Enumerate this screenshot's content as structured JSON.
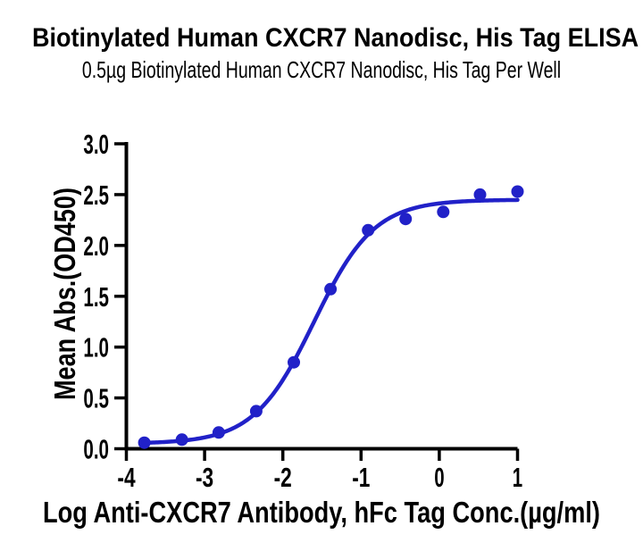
{
  "chart_data": {
    "type": "scatter",
    "title": "Biotinylated Human CXCR7 Nanodisc, His Tag ELISA",
    "subtitle": "0.5µg Biotinylated Human CXCR7 Nanodisc, His Tag Per Well",
    "xlabel": "Log Anti-CXCR7 Antibody, hFc Tag Conc.(µg/ml)",
    "ylabel": "Mean Abs.(OD450)",
    "xlim": [
      -4,
      1
    ],
    "ylim": [
      0,
      3
    ],
    "x_ticks": [
      -4,
      -3,
      -2,
      -1,
      0,
      1
    ],
    "x_tick_labels": [
      "-4",
      "-3",
      "-2",
      "-1",
      "0",
      "1"
    ],
    "y_ticks": [
      0.0,
      0.5,
      1.0,
      1.5,
      2.0,
      2.5,
      3.0
    ],
    "y_tick_labels": [
      "0.0",
      "0.5",
      "1.0",
      "1.5",
      "2.0",
      "2.5",
      "3.0"
    ],
    "grid": false,
    "legend": "none",
    "series": [
      {
        "name": "Anti-CXCR7 Antibody, hFc Tag",
        "color": "#2121c8",
        "marker": "circle",
        "points": [
          {
            "x": -3.77,
            "y": 0.06
          },
          {
            "x": -3.29,
            "y": 0.09
          },
          {
            "x": -2.82,
            "y": 0.16
          },
          {
            "x": -2.34,
            "y": 0.37
          },
          {
            "x": -1.86,
            "y": 0.85
          },
          {
            "x": -1.39,
            "y": 1.57
          },
          {
            "x": -0.91,
            "y": 2.15
          },
          {
            "x": -0.43,
            "y": 2.26
          },
          {
            "x": 0.05,
            "y": 2.33
          },
          {
            "x": 0.52,
            "y": 2.5
          },
          {
            "x": 1.0,
            "y": 2.53
          }
        ],
        "fit_4pl": {
          "bottom": 0.05,
          "top": 2.45,
          "logEC50": -1.6,
          "hillslope": 1.13
        },
        "curve_range": [
          -3.8,
          1.0
        ]
      }
    ]
  },
  "colors": {
    "curve_blue": "#2121c8",
    "axis_ink": "#000000",
    "background": "#ffffff"
  }
}
